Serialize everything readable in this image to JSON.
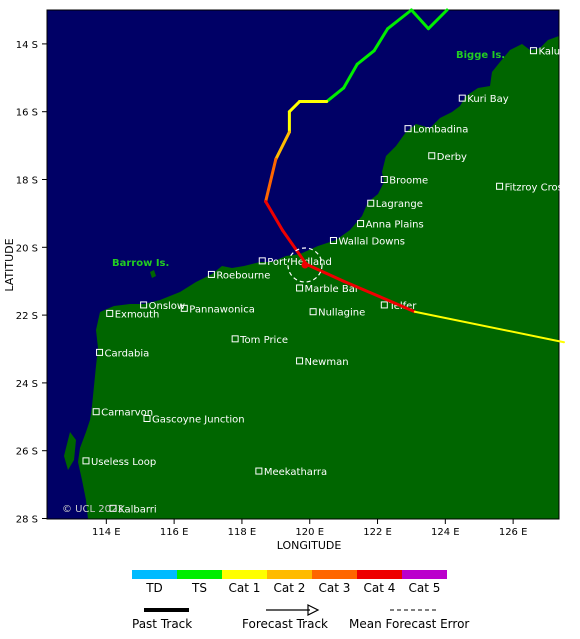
{
  "axes": {
    "xlabel": "LONGITUDE",
    "ylabel": "LATITUDE",
    "lon_ticks": [
      "114 E",
      "116 E",
      "118 E",
      "120 E",
      "122 E",
      "124 E",
      "126 E"
    ],
    "lat_ticks": [
      "14 S",
      "16 S",
      "18 S",
      "20 S",
      "22 S",
      "24 S",
      "26 S",
      "28 S"
    ]
  },
  "map": {
    "ocean_color": "#000066",
    "land_color": "#006600",
    "copyright": "© UCL 2023",
    "regions": [
      "Barrow Is.",
      "Bigge Is."
    ]
  },
  "places": [
    {
      "name": "Kalumburu",
      "lon": 126.6,
      "lat": 14.2
    },
    {
      "name": "Kuri Bay",
      "lon": 124.5,
      "lat": 15.6
    },
    {
      "name": "Lombadina",
      "lon": 122.9,
      "lat": 16.5
    },
    {
      "name": "Derby",
      "lon": 123.6,
      "lat": 17.3
    },
    {
      "name": "Broome",
      "lon": 122.2,
      "lat": 18.0
    },
    {
      "name": "Fitzroy Crossing",
      "lon": 125.6,
      "lat": 18.2
    },
    {
      "name": "Lagrange",
      "lon": 121.8,
      "lat": 18.7
    },
    {
      "name": "Anna Plains",
      "lon": 121.5,
      "lat": 19.3
    },
    {
      "name": "Wallal Downs",
      "lon": 120.7,
      "lat": 19.8
    },
    {
      "name": "Port Hedland",
      "lon": 118.6,
      "lat": 20.4
    },
    {
      "name": "Roebourne",
      "lon": 117.1,
      "lat": 20.8
    },
    {
      "name": "Marble Bar",
      "lon": 119.7,
      "lat": 21.2
    },
    {
      "name": "Telfer",
      "lon": 122.2,
      "lat": 21.7
    },
    {
      "name": "Onslow",
      "lon": 115.1,
      "lat": 21.7
    },
    {
      "name": "Exmouth",
      "lon": 114.1,
      "lat": 21.95
    },
    {
      "name": "Pannawonica",
      "lon": 116.3,
      "lat": 21.8
    },
    {
      "name": "Nullagine",
      "lon": 120.1,
      "lat": 21.9
    },
    {
      "name": "Cardabia",
      "lon": 113.8,
      "lat": 23.1
    },
    {
      "name": "Tom Price",
      "lon": 117.8,
      "lat": 22.7
    },
    {
      "name": "Newman",
      "lon": 119.7,
      "lat": 23.35
    },
    {
      "name": "Carnarvon",
      "lon": 113.7,
      "lat": 24.85
    },
    {
      "name": "Gascoyne Junction",
      "lon": 115.2,
      "lat": 25.05
    },
    {
      "name": "Useless Loop",
      "lon": 113.4,
      "lat": 26.3
    },
    {
      "name": "Meekatharra",
      "lon": 118.5,
      "lat": 26.6
    },
    {
      "name": "Kalbarri",
      "lon": 114.2,
      "lat": 27.7
    }
  ],
  "track": {
    "past": [
      {
        "lon": 124.05,
        "lat": 13.0,
        "cat": "TS"
      },
      {
        "lon": 123.5,
        "lat": 13.55,
        "cat": "TS"
      },
      {
        "lon": 123.0,
        "lat": 13.0,
        "cat": "TS"
      },
      {
        "lon": 122.3,
        "lat": 13.55,
        "cat": "TS"
      },
      {
        "lon": 121.9,
        "lat": 14.2,
        "cat": "TS"
      },
      {
        "lon": 121.4,
        "lat": 14.6,
        "cat": "TS"
      },
      {
        "lon": 121.0,
        "lat": 15.3,
        "cat": "TS"
      },
      {
        "lon": 120.5,
        "lat": 15.7,
        "cat": "Cat 1"
      },
      {
        "lon": 119.7,
        "lat": 15.7,
        "cat": "Cat 1"
      },
      {
        "lon": 119.4,
        "lat": 16.0,
        "cat": "Cat 1"
      },
      {
        "lon": 119.4,
        "lat": 16.6,
        "cat": "Cat 2"
      },
      {
        "lon": 119.0,
        "lat": 17.4,
        "cat": "Cat 3"
      },
      {
        "lon": 118.7,
        "lat": 18.65,
        "cat": "Cat 4"
      },
      {
        "lon": 119.2,
        "lat": 19.5,
        "cat": "Cat 4"
      },
      {
        "lon": 119.9,
        "lat": 20.5,
        "cat": "Cat 4"
      },
      {
        "lon": 121.0,
        "lat": 21.0,
        "cat": "Cat 4"
      },
      {
        "lon": 123.1,
        "lat": 21.9,
        "cat": "Cat 1"
      },
      {
        "lon": 127.5,
        "lat": 22.8,
        "cat": "Cat 1"
      }
    ],
    "current_position": {
      "lon": 119.9,
      "lat": 20.5
    }
  },
  "legend": {
    "categories": [
      {
        "label": "TD",
        "color": "#00bbff"
      },
      {
        "label": "TS",
        "color": "#00ee00"
      },
      {
        "label": "Cat 1",
        "color": "#ffff00"
      },
      {
        "label": "Cat 2",
        "color": "#ffbb00"
      },
      {
        "label": "Cat 3",
        "color": "#ff6600"
      },
      {
        "label": "Cat 4",
        "color": "#ee0000"
      },
      {
        "label": "Cat 5",
        "color": "#bb00cc"
      }
    ],
    "past_track": "Past Track",
    "forecast_track": "Forecast Track",
    "mean_error": "Mean Forecast Error"
  }
}
